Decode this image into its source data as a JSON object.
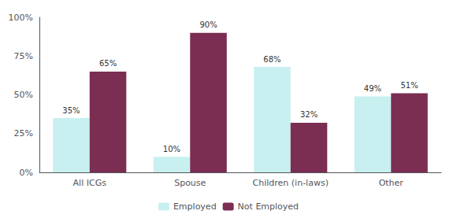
{
  "chart_data": {
    "type": "bar",
    "categories": [
      "All ICGs",
      "Spouse",
      "Children (in-laws)",
      "Other"
    ],
    "series": [
      {
        "name": "Employed",
        "color": "#c8f0f0",
        "values": [
          35,
          10,
          68,
          49
        ],
        "value_labels": [
          "35%",
          "10%",
          "68%",
          "49%"
        ]
      },
      {
        "name": "Not Employed",
        "color": "#7b2d52",
        "values": [
          65,
          90,
          32,
          51
        ],
        "value_labels": [
          "65%",
          "90%",
          "32%",
          "51%"
        ]
      }
    ],
    "ylim": [
      0,
      100
    ],
    "yticks": [
      {
        "value": 0,
        "label": "0%"
      },
      {
        "value": 25,
        "label": "25%"
      },
      {
        "value": 50,
        "label": "50%"
      },
      {
        "value": 75,
        "label": "75%"
      },
      {
        "value": 100,
        "label": "100%"
      }
    ],
    "grid": false,
    "legend": "bottom",
    "data_labels": true
  }
}
